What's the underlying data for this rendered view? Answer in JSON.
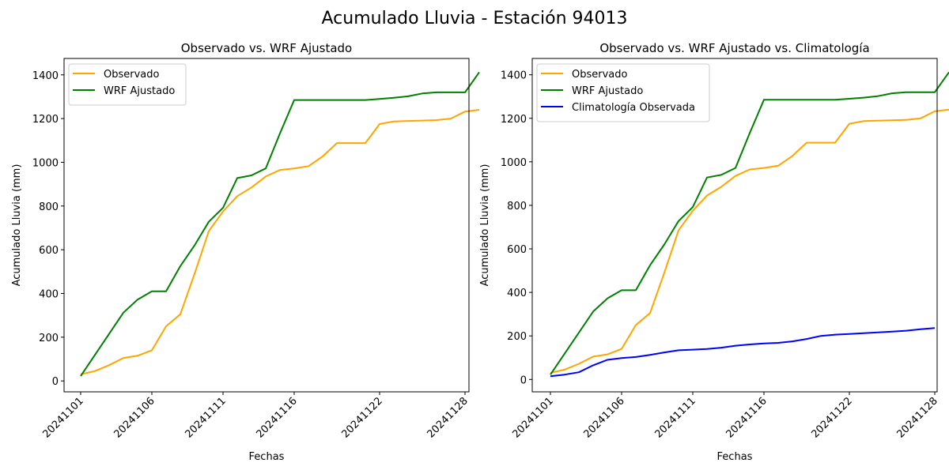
{
  "suptitle": "Acumulado Lluvia - Estación 94013",
  "colors": {
    "observado": "#ffa500",
    "wrf": "#008000",
    "clima": "#0000ff"
  },
  "chart_data": [
    {
      "type": "line",
      "title": "Observado vs. WRF Ajustado",
      "xlabel": "Fechas",
      "ylabel": "Acumulado Lluvia (mm)",
      "ylim": [
        -50,
        1475
      ],
      "yticks": [
        0,
        200,
        400,
        600,
        800,
        1000,
        1200,
        1400
      ],
      "xticks": [
        "20241101",
        "20241106",
        "20241111",
        "20241116",
        "20241122",
        "20241128"
      ],
      "legend": "top-left",
      "series": [
        {
          "name": "Observado",
          "color": "#ffa500",
          "points": [
            [
              "20241101",
              30
            ],
            [
              "20241102",
              45
            ],
            [
              "20241103",
              72
            ],
            [
              "20241104",
              105
            ],
            [
              "20241105",
              115
            ],
            [
              "20241106",
              140
            ],
            [
              "20241107",
              250
            ],
            [
              "20241108",
              305
            ],
            [
              "20241109",
              490
            ],
            [
              "20241110",
              685
            ],
            [
              "20241111",
              775
            ],
            [
              "20241112",
              845
            ],
            [
              "20241113",
              885
            ],
            [
              "20241114",
              935
            ],
            [
              "20241115",
              965
            ],
            [
              "20241116",
              972
            ],
            [
              "20241117",
              982
            ],
            [
              "20241118",
              1027
            ],
            [
              "20241119",
              1088
            ],
            [
              "20241121",
              1088
            ],
            [
              "20241122",
              1175
            ],
            [
              "20241123",
              1187
            ],
            [
              "20241124",
              1189
            ],
            [
              "20241125",
              1191
            ],
            [
              "20241126",
              1193
            ],
            [
              "20241127",
              1200
            ],
            [
              "20241128",
              1232
            ],
            [
              "20241129",
              1240
            ]
          ]
        },
        {
          "name": "WRF Ajustado",
          "color": "#008000",
          "points": [
            [
              "20241101",
              22
            ],
            [
              "20241104",
              312
            ],
            [
              "20241105",
              372
            ],
            [
              "20241106",
              410
            ],
            [
              "20241107",
              410
            ],
            [
              "20241108",
              525
            ],
            [
              "20241109",
              620
            ],
            [
              "20241110",
              728
            ],
            [
              "20241111",
              792
            ],
            [
              "20241112",
              928
            ],
            [
              "20241113",
              940
            ],
            [
              "20241114",
              972
            ],
            [
              "20241115",
              1132
            ],
            [
              "20241116",
              1285
            ],
            [
              "20241117",
              1285
            ],
            [
              "20241118",
              1285
            ],
            [
              "20241119",
              1285
            ],
            [
              "20241121",
              1285
            ],
            [
              "20241122",
              1290
            ],
            [
              "20241123",
              1295
            ],
            [
              "20241124",
              1302
            ],
            [
              "20241125",
              1315
            ],
            [
              "20241126",
              1320
            ],
            [
              "20241128",
              1320
            ],
            [
              "20241129",
              1412
            ]
          ]
        }
      ]
    },
    {
      "type": "line",
      "title": "Observado vs. WRF Ajustado vs. Climatología",
      "xlabel": "Fechas",
      "ylabel": "Acumulado Lluvia (mm)",
      "ylim": [
        -57,
        1475
      ],
      "yticks": [
        0,
        200,
        400,
        600,
        800,
        1000,
        1200,
        1400
      ],
      "xticks": [
        "20241101",
        "20241106",
        "20241111",
        "20241116",
        "20241122",
        "20241128"
      ],
      "legend": "top-left",
      "series": [
        {
          "name": "Observado",
          "color": "#ffa500",
          "points": [
            [
              "20241101",
              30
            ],
            [
              "20241102",
              45
            ],
            [
              "20241103",
              72
            ],
            [
              "20241104",
              105
            ],
            [
              "20241105",
              115
            ],
            [
              "20241106",
              140
            ],
            [
              "20241107",
              250
            ],
            [
              "20241108",
              305
            ],
            [
              "20241109",
              490
            ],
            [
              "20241110",
              685
            ],
            [
              "20241111",
              775
            ],
            [
              "20241112",
              845
            ],
            [
              "20241113",
              885
            ],
            [
              "20241114",
              935
            ],
            [
              "20241115",
              965
            ],
            [
              "20241116",
              972
            ],
            [
              "20241117",
              982
            ],
            [
              "20241118",
              1027
            ],
            [
              "20241119",
              1088
            ],
            [
              "20241121",
              1088
            ],
            [
              "20241122",
              1175
            ],
            [
              "20241123",
              1187
            ],
            [
              "20241124",
              1189
            ],
            [
              "20241125",
              1191
            ],
            [
              "20241126",
              1193
            ],
            [
              "20241127",
              1200
            ],
            [
              "20241128",
              1232
            ],
            [
              "20241129",
              1240
            ]
          ]
        },
        {
          "name": "WRF Ajustado",
          "color": "#008000",
          "points": [
            [
              "20241101",
              22
            ],
            [
              "20241104",
              312
            ],
            [
              "20241105",
              372
            ],
            [
              "20241106",
              410
            ],
            [
              "20241107",
              410
            ],
            [
              "20241108",
              525
            ],
            [
              "20241109",
              620
            ],
            [
              "20241110",
              728
            ],
            [
              "20241111",
              792
            ],
            [
              "20241112",
              928
            ],
            [
              "20241113",
              940
            ],
            [
              "20241114",
              972
            ],
            [
              "20241115",
              1132
            ],
            [
              "20241116",
              1285
            ],
            [
              "20241117",
              1285
            ],
            [
              "20241118",
              1285
            ],
            [
              "20241119",
              1285
            ],
            [
              "20241121",
              1285
            ],
            [
              "20241122",
              1290
            ],
            [
              "20241123",
              1295
            ],
            [
              "20241124",
              1302
            ],
            [
              "20241125",
              1315
            ],
            [
              "20241126",
              1320
            ],
            [
              "20241128",
              1320
            ],
            [
              "20241129",
              1412
            ]
          ]
        },
        {
          "name": "Climatología Observada",
          "color": "#0000ff",
          "points": [
            [
              "20241101",
              15
            ],
            [
              "20241102",
              22
            ],
            [
              "20241103",
              33
            ],
            [
              "20241104",
              65
            ],
            [
              "20241105",
              90
            ],
            [
              "20241106",
              98
            ],
            [
              "20241107",
              103
            ],
            [
              "20241108",
              113
            ],
            [
              "20241109",
              124
            ],
            [
              "20241110",
              134
            ],
            [
              "20241111",
              137
            ],
            [
              "20241112",
              140
            ],
            [
              "20241113",
              146
            ],
            [
              "20241114",
              155
            ],
            [
              "20241115",
              161
            ],
            [
              "20241116",
              165
            ],
            [
              "20241117",
              168
            ],
            [
              "20241118",
              175
            ],
            [
              "20241119",
              186
            ],
            [
              "20241120",
              200
            ],
            [
              "20241121",
              206
            ],
            [
              "20241122",
              209
            ],
            [
              "20241124",
              216
            ],
            [
              "20241125",
              220
            ],
            [
              "20241126",
              224
            ],
            [
              "20241127",
              231
            ],
            [
              "20241128",
              236
            ]
          ]
        }
      ]
    }
  ]
}
